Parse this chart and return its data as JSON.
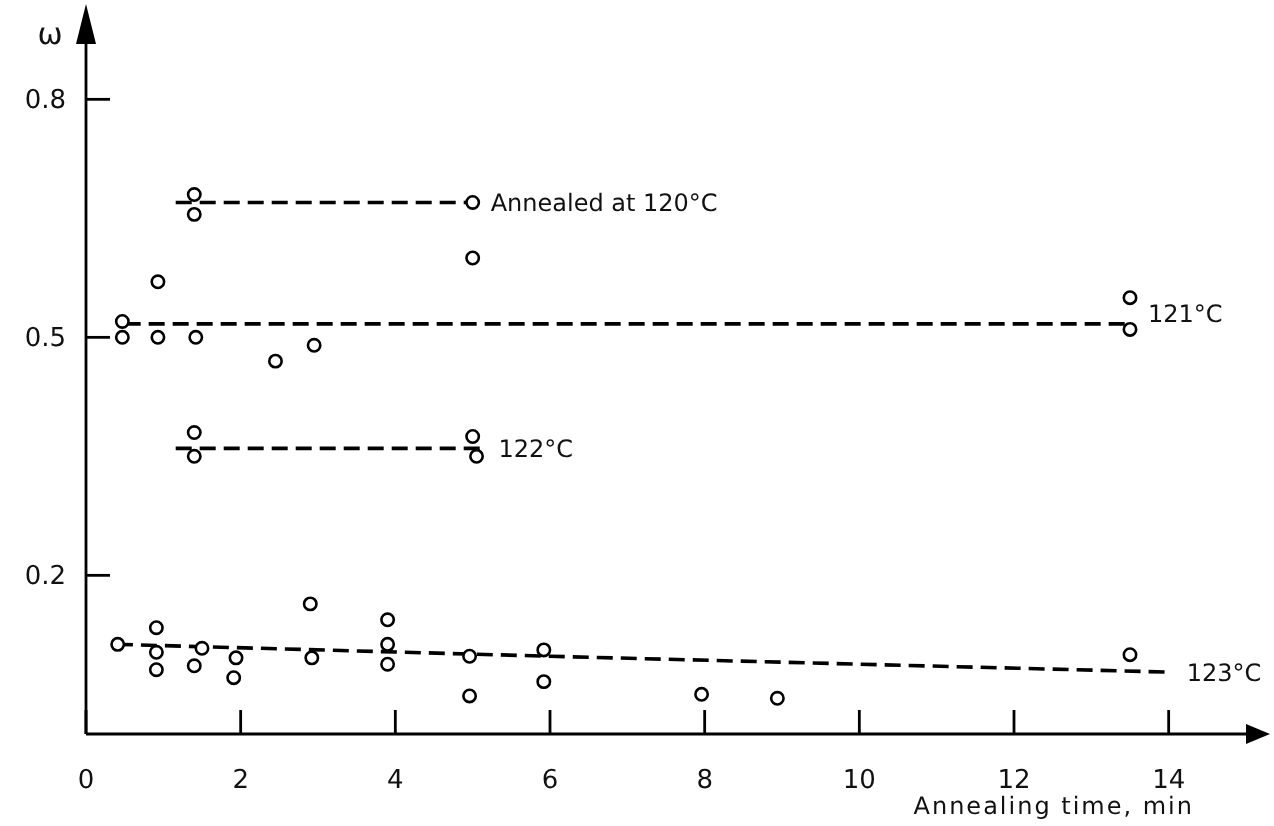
{
  "chart_data": {
    "type": "scatter",
    "xlabel": "Annealing time, min",
    "ylabel": "ω",
    "xlim": [
      0,
      15
    ],
    "ylim": [
      0,
      0.9
    ],
    "xticks": [
      0,
      2,
      4,
      6,
      8,
      10,
      12,
      14
    ],
    "yticks": [
      0.2,
      0.5,
      0.8
    ],
    "grid": false,
    "series": [
      {
        "type": "line",
        "line_style": "dashed",
        "marker": "none",
        "color": "#000000",
        "x": [
          1.16,
          5.0
        ],
        "values": [
          0.67,
          0.67
        ]
      },
      {
        "type": "line",
        "line_style": "dashed",
        "marker": "none",
        "color": "#000000",
        "x": [
          0.5,
          13.5
        ],
        "values": [
          0.517,
          0.517
        ]
      },
      {
        "type": "line",
        "line_style": "dashed",
        "marker": "none",
        "color": "#000000",
        "x": [
          1.16,
          5.1
        ],
        "values": [
          0.36,
          0.36
        ]
      },
      {
        "type": "line",
        "line_style": "dashed",
        "marker": "none",
        "color": "#000000",
        "x": [
          0.4,
          6,
          14
        ],
        "values": [
          0.113,
          0.098,
          0.078
        ]
      },
      {
        "marker": "circle",
        "color": "#000000",
        "x": [
          1.4,
          1.4,
          5.0
        ],
        "values": [
          0.68,
          0.655,
          0.67
        ]
      },
      {
        "marker": "circle",
        "color": "#000000",
        "x": [
          0.47,
          0.47,
          0.93,
          0.93,
          1.42,
          2.45,
          2.95,
          5.0,
          13.5,
          13.5
        ],
        "values": [
          0.52,
          0.5,
          0.57,
          0.5,
          0.5,
          0.47,
          0.49,
          0.6,
          0.55,
          0.51
        ]
      },
      {
        "marker": "circle",
        "color": "#000000",
        "x": [
          1.4,
          1.4,
          5.0,
          5.05
        ],
        "values": [
          0.38,
          0.35,
          0.375,
          0.35
        ]
      },
      {
        "marker": "circle",
        "color": "#000000",
        "x": [
          0.41,
          0.91,
          0.91,
          0.91,
          1.4,
          1.5,
          1.94,
          1.91,
          2.9,
          2.92,
          3.9,
          3.9,
          3.9,
          4.96,
          4.96,
          5.92,
          5.92,
          7.96,
          8.94,
          13.5
        ],
        "values": [
          0.113,
          0.134,
          0.103,
          0.081,
          0.086,
          0.108,
          0.096,
          0.071,
          0.164,
          0.096,
          0.144,
          0.113,
          0.088,
          0.098,
          0.048,
          0.106,
          0.066,
          0.05,
          0.045,
          0.1
        ]
      }
    ],
    "annotations": [
      {
        "text": "Annealed at 120°C",
        "x": 5.0,
        "y": 0.67
      },
      {
        "text": "121°C",
        "x": 13.5,
        "y": 0.53
      },
      {
        "text": "122°C",
        "x": 5.1,
        "y": 0.36
      },
      {
        "text": "123°C",
        "x": 14,
        "y": 0.078
      }
    ]
  }
}
